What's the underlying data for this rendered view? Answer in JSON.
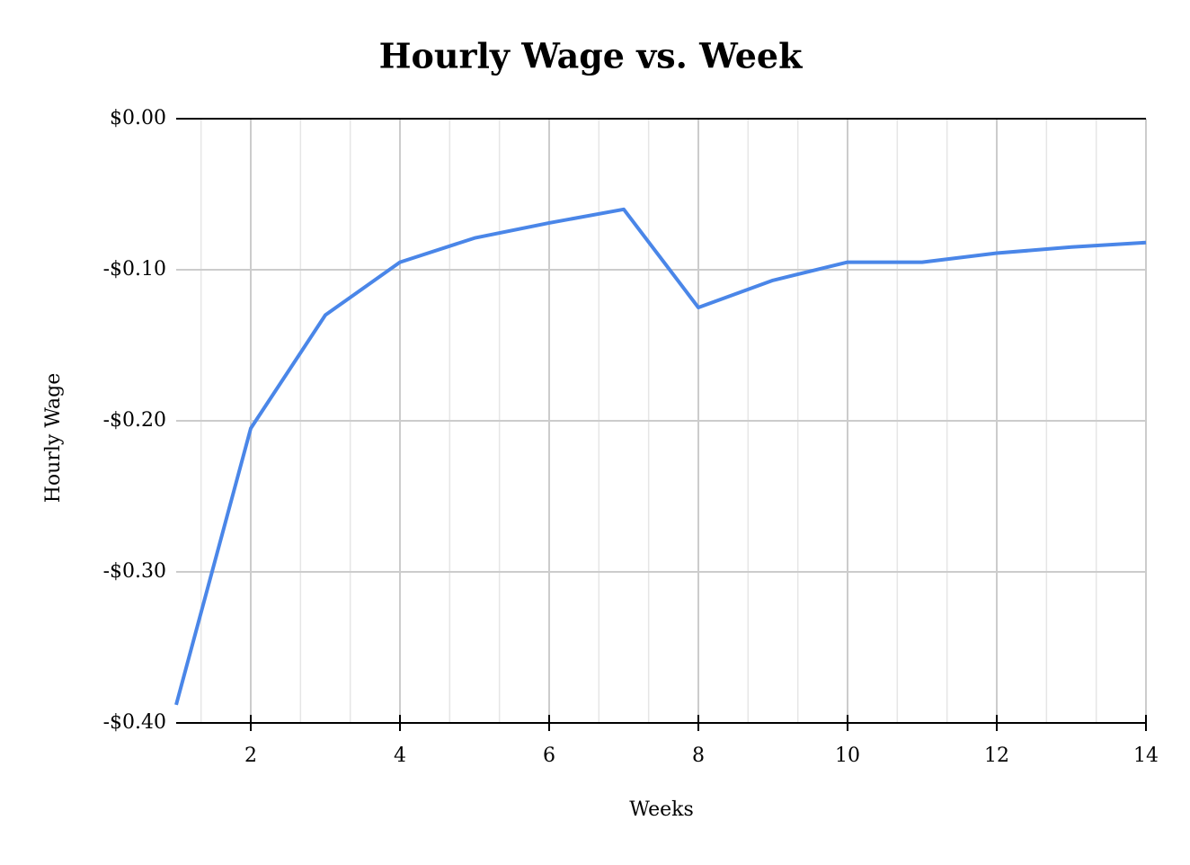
{
  "chart_data": {
    "type": "line",
    "title": "Hourly Wage vs. Week",
    "x_label": "Weeks",
    "y_label": "Hourly Wage",
    "x": [
      1,
      2,
      3,
      4,
      5,
      6,
      7,
      8,
      9,
      10,
      11,
      12,
      13,
      14
    ],
    "series": [
      {
        "name": "Hourly Wage",
        "color": "#4a86e8",
        "values": [
          -0.388,
          -0.205,
          -0.13,
          -0.095,
          -0.079,
          -0.069,
          -0.06,
          -0.125,
          -0.107,
          -0.095,
          -0.095,
          -0.089,
          -0.085,
          -0.082
        ]
      }
    ],
    "xlim": [
      1,
      14
    ],
    "xticks": [
      2,
      4,
      6,
      8,
      10,
      12,
      14
    ],
    "ylim": [
      -0.4,
      0
    ],
    "yticks": [
      {
        "value": -0.4,
        "label": "-$0.40"
      },
      {
        "value": -0.3,
        "label": "-$0.30"
      },
      {
        "value": -0.2,
        "label": "-$0.20"
      },
      {
        "value": -0.1,
        "label": "-$0.10"
      },
      {
        "value": 0,
        "label": "$0.00"
      }
    ],
    "grid": true
  }
}
